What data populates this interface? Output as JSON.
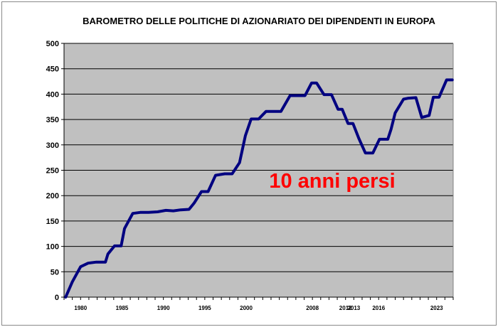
{
  "chart_data": {
    "type": "line",
    "title": "BAROMETRO DELLE POLITICHE DI AZIONARIATO DEI DIPENDENTI  IN EUROPA",
    "xlabel": "",
    "ylabel": "",
    "ylim": [
      0,
      500
    ],
    "xlim": [
      1978,
      2025
    ],
    "yticks": [
      0,
      50,
      100,
      150,
      200,
      250,
      300,
      350,
      400,
      450,
      500
    ],
    "xtick_labels": [
      "1980",
      "1985",
      "1990",
      "1995",
      "2000",
      "2008",
      "2012",
      "2013",
      "2016",
      "2023"
    ],
    "grid": true,
    "legend": "none",
    "colors": {
      "line": "#000080",
      "plot_bg": "#c0c0c0",
      "annotation": "#ff0000"
    },
    "annotation": "10 anni persi",
    "series": [
      {
        "x": [
          1978.2,
          1979,
          1980,
          1980.9,
          1981.9,
          1983,
          1983.3,
          1984.1,
          1984.9,
          1985.3,
          1986.3,
          1987.2,
          1988.2,
          1989.3,
          1990.3,
          1991.2,
          1992.1,
          1993.1,
          1993.7,
          1994.6,
          1995.4,
          1996.3,
          1997.4,
          1998.3,
          1999.2,
          1999.9,
          2000.6,
          2001.5,
          2002.4,
          2003.4,
          2004.2,
          2005.3,
          2006.2,
          2007.1,
          2007.9,
          2008.5,
          2009.4,
          2010.3,
          2011.1,
          2011.6,
          2012.3,
          2012.9,
          2013.6,
          2014.4,
          2015.3,
          2016.1,
          2017.1,
          2017.5,
          2018,
          2019,
          2019.6,
          2020.5,
          2021.2,
          2022.1,
          2022.6,
          2023.3,
          2024.2,
          2024.9
        ],
        "y": [
          0,
          30,
          60,
          67,
          69,
          69,
          85,
          101,
          101,
          135,
          165,
          167,
          167,
          168,
          171,
          170,
          172,
          173,
          185,
          208,
          208,
          240,
          243,
          243,
          265,
          318,
          351,
          351,
          366,
          366,
          366,
          397,
          397,
          397,
          422,
          422,
          399,
          399,
          370,
          370,
          342,
          342,
          313,
          284,
          284,
          311,
          311,
          331,
          363,
          390,
          392,
          393,
          354,
          358,
          394,
          394,
          428,
          428
        ]
      }
    ]
  }
}
